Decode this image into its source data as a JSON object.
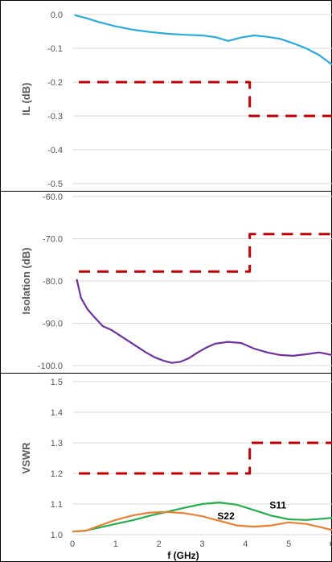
{
  "chart_data": [
    {
      "type": "line",
      "ylabel": "IL (dB)",
      "ylim": [
        -0.5,
        0.0
      ],
      "yticks": [
        "0.0",
        "-0.1",
        "-0.2",
        "-0.3",
        "-0.4",
        "-0.5"
      ],
      "xlim": [
        0,
        6
      ],
      "grid": true,
      "series": [
        {
          "style": "solid",
          "color": "#29abe2",
          "x": [
            0.05,
            0.3,
            0.6,
            1.0,
            1.4,
            1.8,
            2.2,
            2.6,
            3.0,
            3.3,
            3.6,
            3.9,
            4.2,
            4.5,
            4.8,
            5.1,
            5.4,
            5.7,
            6.0
          ],
          "y": [
            -0.002,
            -0.01,
            -0.022,
            -0.035,
            -0.045,
            -0.052,
            -0.057,
            -0.06,
            -0.062,
            -0.067,
            -0.078,
            -0.068,
            -0.062,
            -0.066,
            -0.072,
            -0.085,
            -0.1,
            -0.12,
            -0.148
          ]
        },
        {
          "style": "dashed",
          "color": "#c00000",
          "x": [
            0.15,
            4.1,
            4.1,
            6.0
          ],
          "y": [
            -0.2,
            -0.2,
            -0.3,
            -0.3
          ]
        }
      ]
    },
    {
      "type": "line",
      "ylabel": "Isolation (dB)",
      "ylim": [
        -105.0,
        -60.0
      ],
      "yticks": [
        "-60.0",
        "-70.0",
        "-80.0",
        "-90.0",
        "-100.0"
      ],
      "xlim": [
        0,
        6
      ],
      "grid": true,
      "series": [
        {
          "style": "solid",
          "color": "#7030a0",
          "x": [
            0.1,
            0.2,
            0.35,
            0.5,
            0.7,
            0.9,
            1.1,
            1.3,
            1.5,
            1.7,
            1.9,
            2.1,
            2.3,
            2.5,
            2.7,
            2.9,
            3.1,
            3.3,
            3.6,
            3.9,
            4.2,
            4.5,
            4.8,
            5.1,
            5.4,
            5.7,
            6.0
          ],
          "y": [
            -82,
            -87,
            -90,
            -92,
            -94.5,
            -95.5,
            -97,
            -98.5,
            -100,
            -101.5,
            -102.8,
            -103.7,
            -104.3,
            -104,
            -103,
            -101.5,
            -100.2,
            -99.2,
            -98.7,
            -99,
            -100.5,
            -101.5,
            -102.2,
            -102.4,
            -102,
            -101.5,
            -102.2
          ]
        },
        {
          "style": "dashed",
          "color": "#c00000",
          "x": [
            0.15,
            4.1,
            4.1,
            6.0
          ],
          "y": [
            -80,
            -80,
            -70,
            -70
          ]
        }
      ]
    },
    {
      "type": "line",
      "ylabel": "VSWR",
      "xlabel": "f (GHz)",
      "ylim": [
        1.0,
        1.5
      ],
      "yticks": [
        "1.5",
        "1.4",
        "1.3",
        "1.2",
        "1.1",
        "1.0"
      ],
      "xlim": [
        0,
        6
      ],
      "xticks": [
        "0",
        "1",
        "2",
        "3",
        "4",
        "5",
        "6"
      ],
      "grid": true,
      "annotations": [
        {
          "text": "S11",
          "x": 4.75,
          "y": 1.085
        },
        {
          "text": "S22",
          "x": 3.55,
          "y": 1.05
        }
      ],
      "series": [
        {
          "name": "S11",
          "style": "solid",
          "color": "#22b14c",
          "x": [
            0.0,
            0.3,
            0.6,
            1.0,
            1.4,
            1.8,
            2.2,
            2.6,
            3.0,
            3.4,
            3.8,
            4.2,
            4.6,
            5.0,
            5.4,
            5.8,
            6.0
          ],
          "y": [
            1.01,
            1.013,
            1.022,
            1.035,
            1.047,
            1.062,
            1.075,
            1.088,
            1.1,
            1.105,
            1.098,
            1.08,
            1.062,
            1.05,
            1.048,
            1.052,
            1.055
          ]
        },
        {
          "name": "S22",
          "style": "solid",
          "color": "#ed7d31",
          "x": [
            0.0,
            0.3,
            0.6,
            1.0,
            1.4,
            1.8,
            2.2,
            2.6,
            3.0,
            3.4,
            3.8,
            4.2,
            4.6,
            5.0,
            5.4,
            5.8,
            6.0
          ],
          "y": [
            1.01,
            1.012,
            1.028,
            1.048,
            1.063,
            1.072,
            1.074,
            1.07,
            1.06,
            1.045,
            1.03,
            1.026,
            1.03,
            1.04,
            1.035,
            1.022,
            1.015
          ]
        },
        {
          "style": "dashed",
          "color": "#c00000",
          "x": [
            0.15,
            4.1,
            4.1,
            6.0
          ],
          "y": [
            1.2,
            1.2,
            1.3,
            1.3
          ]
        }
      ]
    }
  ]
}
